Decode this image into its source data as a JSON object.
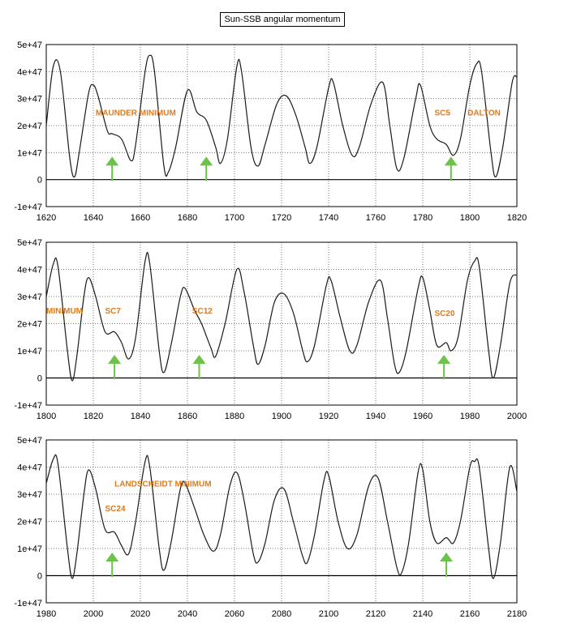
{
  "title": "Sun-SSB angular momentum",
  "colors": {
    "curve": "#1a1a1a",
    "grid": "#7a7a7a",
    "annotation": "#e07a1a",
    "arrow": "#6cc24a"
  },
  "chart_data": [
    {
      "type": "line",
      "x_ticks": [
        "1620",
        "1640",
        "1660",
        "1680",
        "1700",
        "1720",
        "1740",
        "1760",
        "1780",
        "1800",
        "1820"
      ],
      "y_ticks": [
        "5e+47",
        "4e+47",
        "3e+47",
        "2e+47",
        "1e+47",
        "0",
        "-1e+47"
      ],
      "xlim": [
        1620,
        1820
      ],
      "ylim": [
        -1e+47,
        5e+47
      ],
      "grid": "dotted",
      "annotations": [
        {
          "text": "MAUNDER MINIMUM",
          "x": 1641,
          "y": 2.5e+47
        },
        {
          "text": "SC5",
          "x": 1785,
          "y": 2.5e+47
        },
        {
          "text": "DALTON",
          "x": 1799,
          "y": 2.5e+47
        }
      ],
      "arrows": [
        1648,
        1688,
        1792
      ],
      "points": [
        [
          1620,
          2e+47
        ],
        [
          1623,
          4.2e+47
        ],
        [
          1626,
          4e+47
        ],
        [
          1630,
          8e+46
        ],
        [
          1632,
          1e+46
        ],
        [
          1634,
          1e+47
        ],
        [
          1638,
          3.2e+47
        ],
        [
          1640,
          3.5e+47
        ],
        [
          1642,
          3.1e+47
        ],
        [
          1646,
          1.8e+47
        ],
        [
          1648,
          1.7e+47
        ],
        [
          1652,
          1.5e+47
        ],
        [
          1656,
          7e+46
        ],
        [
          1658,
          1.3e+47
        ],
        [
          1662,
          4e+47
        ],
        [
          1664,
          4.6e+47
        ],
        [
          1666,
          4e+47
        ],
        [
          1670,
          5e+46
        ],
        [
          1672,
          3e+46
        ],
        [
          1675,
          1.2e+47
        ],
        [
          1680,
          3.3e+47
        ],
        [
          1684,
          2.5e+47
        ],
        [
          1688,
          2.2e+47
        ],
        [
          1692,
          1.2e+47
        ],
        [
          1694,
          6e+46
        ],
        [
          1697,
          1.5e+47
        ],
        [
          1701,
          4.2e+47
        ],
        [
          1703,
          4e+47
        ],
        [
          1707,
          1.2e+47
        ],
        [
          1710,
          5e+46
        ],
        [
          1713,
          1.3e+47
        ],
        [
          1718,
          2.8e+47
        ],
        [
          1722,
          3.1e+47
        ],
        [
          1726,
          2.4e+47
        ],
        [
          1730,
          1.2e+47
        ],
        [
          1732,
          6e+46
        ],
        [
          1735,
          1.2e+47
        ],
        [
          1740,
          3.4e+47
        ],
        [
          1742,
          3.6e+47
        ],
        [
          1746,
          2e+47
        ],
        [
          1750,
          9e+46
        ],
        [
          1753,
          1.2e+47
        ],
        [
          1758,
          2.8e+47
        ],
        [
          1763,
          3.6e+47
        ],
        [
          1766,
          2e+47
        ],
        [
          1769,
          4e+46
        ],
        [
          1772,
          8e+46
        ],
        [
          1777,
          3e+47
        ],
        [
          1779,
          3.5e+47
        ],
        [
          1783,
          2e+47
        ],
        [
          1786,
          1.5e+47
        ],
        [
          1790,
          1.3e+47
        ],
        [
          1793,
          9e+46
        ],
        [
          1796,
          1.5e+47
        ],
        [
          1800,
          3.5e+47
        ],
        [
          1803,
          4.3e+47
        ],
        [
          1805,
          4e+47
        ],
        [
          1809,
          1e+47
        ],
        [
          1811,
          1e+46
        ],
        [
          1814,
          1.2e+47
        ],
        [
          1818,
          3.6e+47
        ],
        [
          1820,
          3.8e+47
        ]
      ]
    },
    {
      "type": "line",
      "x_ticks": [
        "1800",
        "1820",
        "1840",
        "1860",
        "1880",
        "1900",
        "1920",
        "1940",
        "1960",
        "1980",
        "2000"
      ],
      "y_ticks": [
        "5e+47",
        "4e+47",
        "3e+47",
        "2e+47",
        "1e+47",
        "0",
        "-1e+47"
      ],
      "xlim": [
        1800,
        2000
      ],
      "ylim": [
        -1e+47,
        5e+47
      ],
      "grid": "dotted",
      "annotations": [
        {
          "text": "MINIMUM",
          "x": 1800,
          "y": 2.5e+47
        },
        {
          "text": "SC7",
          "x": 1825,
          "y": 2.5e+47
        },
        {
          "text": "SC12",
          "x": 1862,
          "y": 2.5e+47
        },
        {
          "text": "SC20",
          "x": 1965,
          "y": 2.4e+47
        }
      ],
      "arrows": [
        1829,
        1865,
        1969
      ],
      "points": [
        [
          1800,
          3e+47
        ],
        [
          1803,
          4.2e+47
        ],
        [
          1805,
          4.1e+47
        ],
        [
          1809,
          1e+47
        ],
        [
          1811,
          -1e+46
        ],
        [
          1813,
          8e+46
        ],
        [
          1816,
          3e+47
        ],
        [
          1818,
          3.7e+47
        ],
        [
          1821,
          3e+47
        ],
        [
          1825,
          1.7e+47
        ],
        [
          1829,
          1.7e+47
        ],
        [
          1832,
          1.3e+47
        ],
        [
          1835,
          7e+46
        ],
        [
          1838,
          1.5e+47
        ],
        [
          1842,
          4.3e+47
        ],
        [
          1844,
          4.2e+47
        ],
        [
          1848,
          1e+47
        ],
        [
          1850,
          2e+46
        ],
        [
          1853,
          1.2e+47
        ],
        [
          1857,
          3e+47
        ],
        [
          1859,
          3.3e+47
        ],
        [
          1863,
          2.5e+47
        ],
        [
          1866,
          2e+47
        ],
        [
          1870,
          1.1e+47
        ],
        [
          1872,
          8e+46
        ],
        [
          1876,
          2e+47
        ],
        [
          1881,
          4e+47
        ],
        [
          1884,
          3.2e+47
        ],
        [
          1888,
          1.2e+47
        ],
        [
          1890,
          5e+46
        ],
        [
          1893,
          1.2e+47
        ],
        [
          1897,
          2.8e+47
        ],
        [
          1901,
          3.1e+47
        ],
        [
          1905,
          2.4e+47
        ],
        [
          1909,
          1e+47
        ],
        [
          1911,
          6e+46
        ],
        [
          1914,
          1.2e+47
        ],
        [
          1919,
          3.4e+47
        ],
        [
          1921,
          3.6e+47
        ],
        [
          1925,
          2.2e+47
        ],
        [
          1929,
          1e+47
        ],
        [
          1932,
          1.2e+47
        ],
        [
          1937,
          2.8e+47
        ],
        [
          1942,
          3.6e+47
        ],
        [
          1945,
          2.2e+47
        ],
        [
          1948,
          5e+46
        ],
        [
          1950,
          2e+46
        ],
        [
          1953,
          1e+47
        ],
        [
          1958,
          3.3e+47
        ],
        [
          1960,
          3.7e+47
        ],
        [
          1963,
          2.5e+47
        ],
        [
          1966,
          1.2e+47
        ],
        [
          1970,
          1.3e+47
        ],
        [
          1972,
          1e+47
        ],
        [
          1975,
          1.5e+47
        ],
        [
          1979,
          3.6e+47
        ],
        [
          1982,
          4.3e+47
        ],
        [
          1984,
          4.1e+47
        ],
        [
          1988,
          1e+47
        ],
        [
          1990,
          0.0
        ],
        [
          1993,
          1.2e+47
        ],
        [
          1997,
          3.5e+47
        ],
        [
          2000,
          3.8e+47
        ]
      ]
    },
    {
      "type": "line",
      "x_ticks": [
        "1980",
        "2000",
        "2020",
        "2040",
        "2060",
        "2080",
        "2100",
        "2120",
        "2140",
        "2160",
        "2180"
      ],
      "y_ticks": [
        "5e+47",
        "4e+47",
        "3e+47",
        "2e+47",
        "1e+47",
        "0",
        "-1e+47"
      ],
      "xlim": [
        1980,
        2180
      ],
      "ylim": [
        -1e+47,
        5e+47
      ],
      "grid": "dotted",
      "annotations": [
        {
          "text": "LANDSCHEIDT MINIMUM",
          "x": 2009,
          "y": 3.4e+47
        },
        {
          "text": "SC24",
          "x": 2005,
          "y": 2.5e+47
        }
      ],
      "arrows": [
        2008,
        2150
      ],
      "points": [
        [
          1980,
          3.4e+47
        ],
        [
          1983,
          4.3e+47
        ],
        [
          1985,
          4.1e+47
        ],
        [
          1989,
          1e+47
        ],
        [
          1991,
          -1e+46
        ],
        [
          1993,
          8e+46
        ],
        [
          1996,
          3e+47
        ],
        [
          1998,
          3.9e+47
        ],
        [
          2001,
          3.2e+47
        ],
        [
          2005,
          1.7e+47
        ],
        [
          2009,
          1.6e+47
        ],
        [
          2012,
          1.1e+47
        ],
        [
          2015,
          8e+46
        ],
        [
          2018,
          2e+47
        ],
        [
          2022,
          4.2e+47
        ],
        [
          2024,
          4e+47
        ],
        [
          2028,
          1e+47
        ],
        [
          2030,
          2e+46
        ],
        [
          2033,
          1.2e+47
        ],
        [
          2037,
          3.2e+47
        ],
        [
          2039,
          3.4e+47
        ],
        [
          2043,
          2.5e+47
        ],
        [
          2047,
          1.5e+47
        ],
        [
          2051,
          9e+46
        ],
        [
          2054,
          1.5e+47
        ],
        [
          2058,
          3.3e+47
        ],
        [
          2061,
          3.8e+47
        ],
        [
          2064,
          2.8e+47
        ],
        [
          2068,
          8e+46
        ],
        [
          2070,
          5e+46
        ],
        [
          2073,
          1.2e+47
        ],
        [
          2077,
          2.8e+47
        ],
        [
          2081,
          3.2e+47
        ],
        [
          2085,
          2e+47
        ],
        [
          2089,
          7e+46
        ],
        [
          2091,
          5e+46
        ],
        [
          2094,
          1.5e+47
        ],
        [
          2098,
          3.5e+47
        ],
        [
          2100,
          3.7e+47
        ],
        [
          2104,
          2e+47
        ],
        [
          2108,
          1e+47
        ],
        [
          2112,
          1.5e+47
        ],
        [
          2117,
          3.3e+47
        ],
        [
          2121,
          3.6e+47
        ],
        [
          2125,
          2e+47
        ],
        [
          2129,
          3e+46
        ],
        [
          2131,
          1e+46
        ],
        [
          2134,
          1.2e+47
        ],
        [
          2138,
          3.8e+47
        ],
        [
          2140,
          3.9e+47
        ],
        [
          2143,
          2e+47
        ],
        [
          2146,
          1.2e+47
        ],
        [
          2150,
          1.4e+47
        ],
        [
          2153,
          1.2e+47
        ],
        [
          2156,
          2e+47
        ],
        [
          2160,
          4e+47
        ],
        [
          2162,
          4.2e+47
        ],
        [
          2164,
          4e+47
        ],
        [
          2168,
          1e+47
        ],
        [
          2170,
          -1e+46
        ],
        [
          2173,
          1.2e+47
        ],
        [
          2177,
          4e+47
        ],
        [
          2180,
          3.1e+47
        ]
      ]
    }
  ]
}
